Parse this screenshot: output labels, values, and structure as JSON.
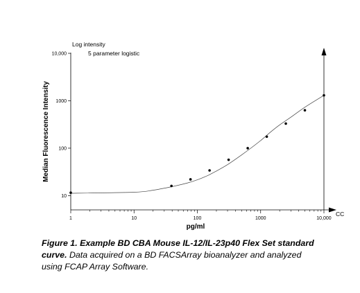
{
  "chart_data": {
    "type": "scatter",
    "y_axis_title": "Log intensity",
    "ylabel": "Median Fluorescence Intensity",
    "xlabel": "pg/ml",
    "x_axis_end_label": "CC",
    "fit_label": "5 parameter logistic",
    "x_scale": "log",
    "y_scale": "log",
    "xlim": [
      1,
      10000
    ],
    "ylim": [
      5,
      10000
    ],
    "x_ticks": [
      1,
      10,
      100,
      1000,
      10000
    ],
    "x_tick_labels": [
      "1",
      "10",
      "100",
      "1000",
      "10,000"
    ],
    "y_ticks": [
      10,
      100,
      1000,
      10000
    ],
    "y_tick_labels": [
      "10",
      "100",
      "1000",
      "10,000"
    ],
    "grid": false,
    "curve": {
      "name": "5 parameter logistic",
      "x": [
        1,
        10,
        20,
        40,
        70,
        100,
        150,
        200,
        300,
        500,
        700,
        1000,
        1500,
        2000,
        3000,
        5000,
        10000
      ],
      "y": [
        11.2,
        11.8,
        13,
        15.5,
        18.5,
        21.5,
        27,
        33,
        45,
        72,
        100,
        145,
        230,
        310,
        450,
        730,
        1300
      ]
    },
    "series": [
      {
        "name": "standards",
        "x": [
          1,
          39,
          78,
          156,
          312,
          625,
          1250,
          2500,
          5000,
          10000
        ],
        "y": [
          11.5,
          16,
          22,
          34,
          57,
          100,
          175,
          330,
          630,
          1300
        ]
      }
    ]
  },
  "caption": {
    "label": "Figure 1.",
    "title": "Example BD CBA Mouse IL-12/IL-23p40 Flex Set standard curve.",
    "body": "Data acquired on a BD FACSArray bioanalyzer and analyzed using FCAP Array Software."
  }
}
